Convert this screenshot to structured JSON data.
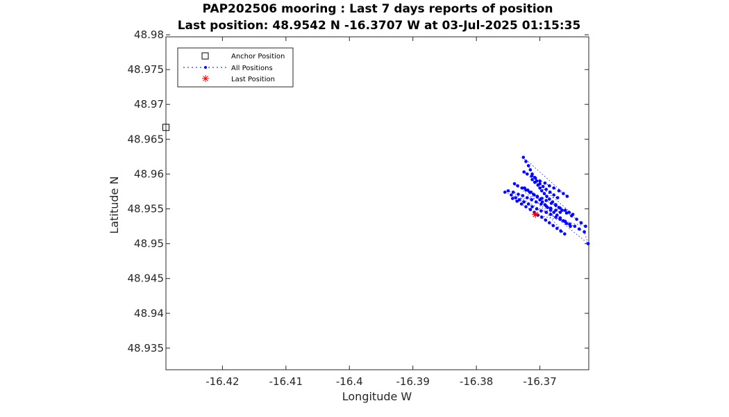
{
  "chart_data": {
    "type": "scatter",
    "title": "PAP202506 mooring : Last 7 days reports of position",
    "subtitle": "Last position: 48.9542 N -16.3707 W at 03-Jul-2025 01:15:35",
    "xlabel": "Longitude W",
    "ylabel": "Latitude  N",
    "xlim": [
      -16.4289,
      -16.3623
    ],
    "ylim": [
      48.9319,
      48.9797
    ],
    "x_ticks": [
      "-16.42",
      "-16.41",
      "-16.4",
      "-16.39",
      "-16.38",
      "-16.37"
    ],
    "y_ticks": [
      "48.98",
      "48.975",
      "48.97",
      "48.965",
      "48.96",
      "48.955",
      "48.95",
      "48.945",
      "48.94",
      "48.935"
    ],
    "grid": false,
    "legend_position": "top-left",
    "legend": [
      "Anchor Position",
      "All Positions",
      "Last Position"
    ],
    "colors": {
      "anchor": "#000000",
      "positions": "#0000ff",
      "last": "#ff0000"
    },
    "anchor": {
      "x": -16.4289,
      "y": 48.9667
    },
    "last": {
      "x": -16.3707,
      "y": 48.9542
    },
    "series": [
      {
        "name": "All Positions",
        "x": [
          -16.3755,
          -16.3745,
          -16.3738,
          -16.3732,
          -16.3725,
          -16.3718,
          -16.3712,
          -16.3705,
          -16.3698,
          -16.369,
          -16.3683,
          -16.3675,
          -16.3668,
          -16.366,
          -16.3653,
          -16.3645,
          -16.3638,
          -16.363,
          -16.3624,
          -16.374,
          -16.3735,
          -16.3728,
          -16.3722,
          -16.3716,
          -16.371,
          -16.3704,
          -16.3697,
          -16.369,
          -16.3682,
          -16.3675,
          -16.3668,
          -16.366,
          -16.3654,
          -16.3648,
          -16.3725,
          -16.372,
          -16.3713,
          -16.3707,
          -16.37,
          -16.3692,
          -16.3685,
          -16.3678,
          -16.367,
          -16.3663,
          -16.3657,
          -16.3726,
          -16.3722,
          -16.3718,
          -16.3715,
          -16.3712,
          -16.3708,
          -16.3705,
          -16.37,
          -16.3695,
          -16.369,
          -16.3684,
          -16.3678,
          -16.3672,
          -16.3743,
          -16.3736,
          -16.3729,
          -16.3722,
          -16.3715,
          -16.3709,
          -16.3703,
          -16.3697,
          -16.3691,
          -16.3685,
          -16.3679,
          -16.3673,
          -16.3667,
          -16.3661,
          -16.3724,
          -16.3719,
          -16.3714,
          -16.3709,
          -16.3704,
          -16.37,
          -16.3696,
          -16.3692,
          -16.3688,
          -16.3683,
          -16.3678,
          -16.3673,
          -16.3668,
          -16.3663,
          -16.3658,
          -16.3652,
          -16.375,
          -16.3742,
          -16.3734,
          -16.3727,
          -16.372,
          -16.3713,
          -16.3706,
          -16.3698,
          -16.369,
          -16.3683,
          -16.3675,
          -16.3668,
          -16.3712,
          -16.3708,
          -16.3703,
          -16.37,
          -16.3697,
          -16.3693,
          -16.3689,
          -16.3685,
          -16.368,
          -16.3675,
          -16.367,
          -16.3665,
          -16.3658,
          -16.365,
          -16.3642,
          -16.3635,
          -16.3628,
          -16.3707
        ],
        "y": [
          48.9574,
          48.957,
          48.9566,
          48.9563,
          48.956,
          48.9557,
          48.9553,
          48.955,
          48.9547,
          48.9545,
          48.9542,
          48.9538,
          48.9535,
          48.9532,
          48.9528,
          48.9525,
          48.9521,
          48.9517,
          48.95,
          48.9586,
          48.9583,
          48.958,
          48.9577,
          48.9574,
          48.9571,
          48.9568,
          48.9565,
          48.9562,
          48.9558,
          48.9555,
          48.9551,
          48.9548,
          48.9545,
          48.9542,
          48.9603,
          48.96,
          48.9597,
          48.9594,
          48.959,
          48.9587,
          48.9583,
          48.958,
          48.9576,
          48.9572,
          48.9568,
          48.9624,
          48.9618,
          48.9612,
          48.9606,
          48.96,
          48.9595,
          48.959,
          48.9586,
          48.9582,
          48.9578,
          48.9574,
          48.957,
          48.9566,
          48.9565,
          48.9561,
          48.9557,
          48.9553,
          48.9549,
          48.9545,
          48.9541,
          48.9538,
          48.9534,
          48.953,
          48.9526,
          48.9522,
          48.9518,
          48.9514,
          48.958,
          48.9577,
          48.9574,
          48.957,
          48.9567,
          48.9563,
          48.956,
          48.9556,
          48.9552,
          48.9548,
          48.9545,
          48.9541,
          48.9537,
          48.9533,
          48.9529,
          48.9525,
          48.9576,
          48.9574,
          48.9571,
          48.9569,
          48.9566,
          48.9563,
          48.956,
          48.9557,
          48.9554,
          48.9551,
          48.9548,
          48.9545,
          48.9592,
          48.9588,
          48.9584,
          48.958,
          48.9576,
          48.9572,
          48.9568,
          48.9564,
          48.956,
          48.9556,
          48.9552,
          48.9548,
          48.9544,
          48.954,
          48.9535,
          48.953,
          48.9525,
          48.9542
        ]
      }
    ]
  }
}
